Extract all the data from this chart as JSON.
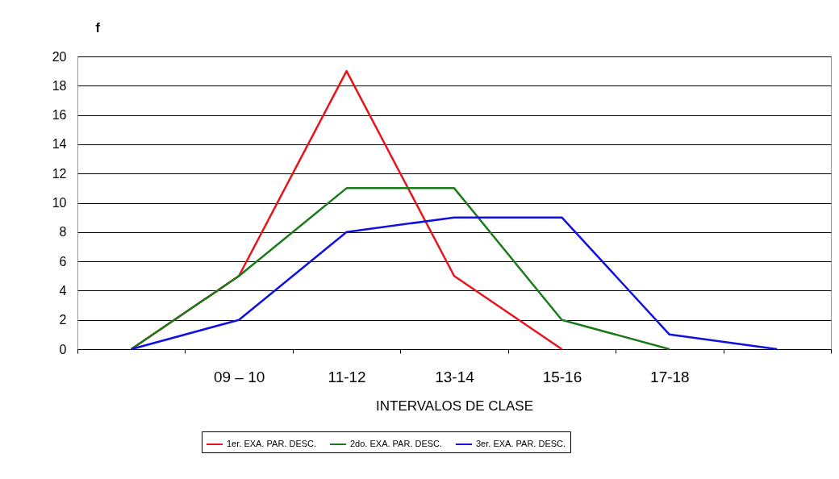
{
  "chart_data": {
    "type": "line",
    "ylabel": "f",
    "xlabel": "INTERVALOS DE CLASE",
    "categories": [
      null,
      "09 – 10",
      "11-12",
      "13-14",
      "15-16",
      "17-18",
      null
    ],
    "series": [
      {
        "name": "1er. EXA. PAR. DESC.",
        "color": "#e8141c",
        "values": [
          0,
          5,
          19,
          5,
          0,
          null,
          null
        ]
      },
      {
        "name": "2do. EXA. PAR. DESC.",
        "color": "#1b7a1b",
        "values": [
          0,
          5,
          11,
          11,
          2,
          0,
          null
        ]
      },
      {
        "name": "3er. EXA. PAR. DESC.",
        "color": "#1010e0",
        "values": [
          0,
          2,
          8,
          9,
          9,
          1,
          0
        ]
      }
    ],
    "ylim": [
      0,
      20
    ],
    "yticks": [
      0,
      2,
      4,
      6,
      8,
      10,
      12,
      14,
      16,
      18,
      20
    ],
    "grid": "y",
    "legend": "bottom",
    "marker": "none",
    "line_style": "solid"
  }
}
